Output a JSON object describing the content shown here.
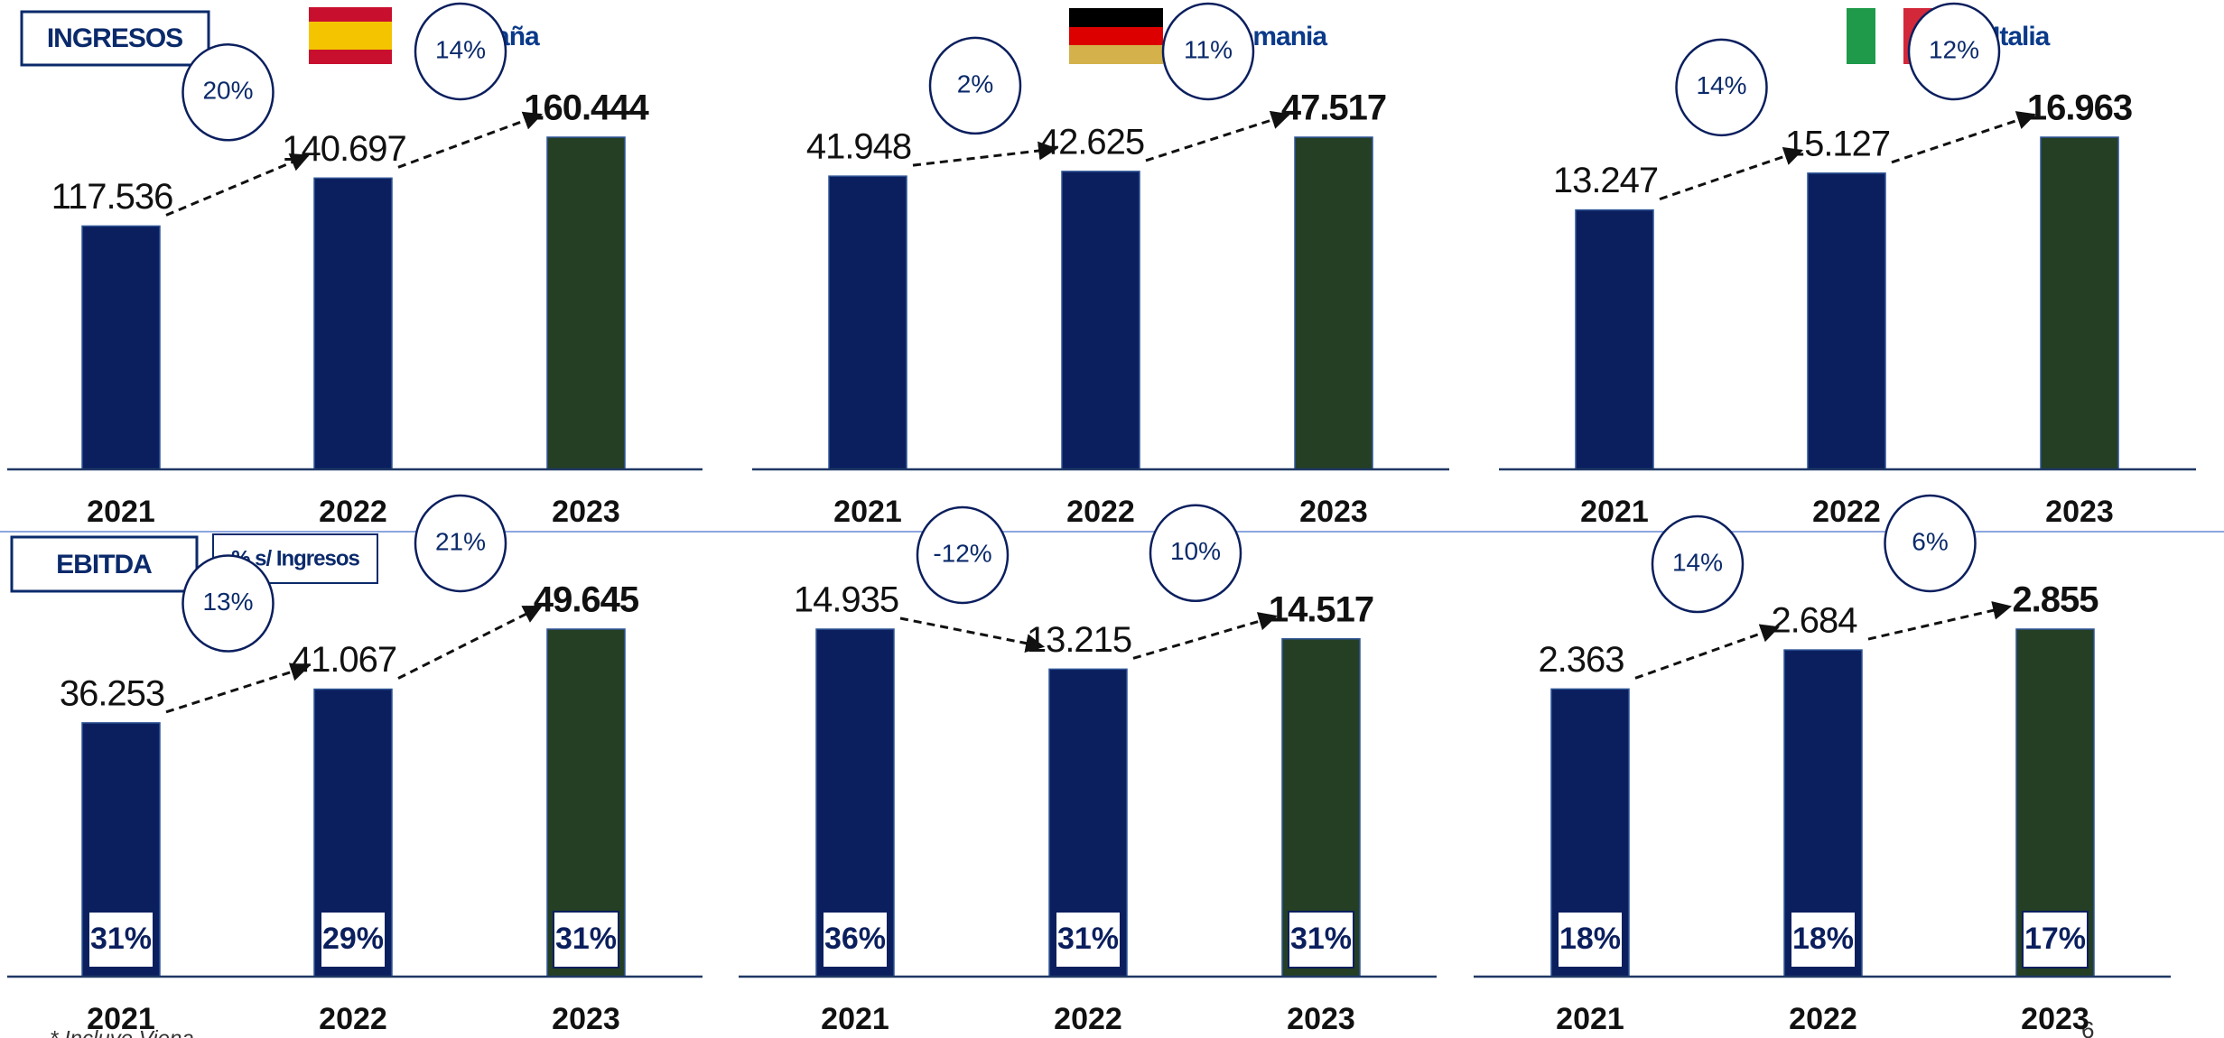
{
  "section_labels": {
    "revenue": "INGRESOS",
    "ebitda": "EBITDA",
    "margin_note": "% s/ Ingresos"
  },
  "countries": [
    {
      "name": "España"
    },
    {
      "prefix": "(*)",
      "name": "Alemania"
    },
    {
      "name": "Italia"
    }
  ],
  "footnote": "* Incluye Viena",
  "page_number": "6",
  "chart_data": [
    {
      "type": "bar",
      "categories": [
        "2021",
        "2022",
        "2023"
      ],
      "values": [
        117536,
        140697,
        160444
      ],
      "value_labels": [
        "117.536",
        "140.697",
        "160.444"
      ],
      "colors": [
        "#0b1f5e",
        "#0b1f5e",
        "#243f24"
      ],
      "growth": [
        20,
        14
      ],
      "growth_labels": [
        "20%",
        "14%"
      ]
    },
    {
      "type": "bar",
      "categories": [
        "2021",
        "2022",
        "2023"
      ],
      "values": [
        41948,
        42625,
        47517
      ],
      "value_labels": [
        "41.948",
        "42.625",
        "47.517"
      ],
      "colors": [
        "#0b1f5e",
        "#0b1f5e",
        "#243f24"
      ],
      "growth": [
        2,
        11
      ],
      "growth_labels": [
        "2%",
        "11%"
      ]
    },
    {
      "type": "bar",
      "categories": [
        "2021",
        "2022",
        "2023"
      ],
      "values": [
        13247,
        15127,
        16963
      ],
      "value_labels": [
        "13.247",
        "15.127",
        "16.963"
      ],
      "colors": [
        "#0b1f5e",
        "#0b1f5e",
        "#243f24"
      ],
      "growth": [
        14,
        12
      ],
      "growth_labels": [
        "14%",
        "12%"
      ]
    },
    {
      "type": "bar",
      "categories": [
        "2021",
        "2022",
        "2023"
      ],
      "values": [
        36253,
        41067,
        49645
      ],
      "value_labels": [
        "36.253",
        "41.067",
        "49.645"
      ],
      "colors": [
        "#0b1f5e",
        "#0b1f5e",
        "#243f24"
      ],
      "growth": [
        13,
        21
      ],
      "growth_labels": [
        "13%",
        "21%"
      ],
      "margins": [
        31,
        29,
        31
      ],
      "margin_labels": [
        "31%",
        "29%",
        "31%"
      ]
    },
    {
      "type": "bar",
      "categories": [
        "2021",
        "2022",
        "2023"
      ],
      "values": [
        14935,
        13215,
        14517
      ],
      "value_labels": [
        "14.935",
        "13.215",
        "14.517"
      ],
      "colors": [
        "#0b1f5e",
        "#0b1f5e",
        "#243f24"
      ],
      "growth": [
        -12,
        10
      ],
      "growth_labels": [
        "-12%",
        "10%"
      ],
      "margins": [
        36,
        31,
        31
      ],
      "margin_labels": [
        "36%",
        "31%",
        "31%"
      ]
    },
    {
      "type": "bar",
      "categories": [
        "2021",
        "2022",
        "2023"
      ],
      "values": [
        2363,
        2684,
        2855
      ],
      "value_labels": [
        "2.363",
        "2.684",
        "2.855"
      ],
      "colors": [
        "#0b1f5e",
        "#0b1f5e",
        "#243f24"
      ],
      "growth": [
        14,
        6
      ],
      "growth_labels": [
        "14%",
        "6%"
      ],
      "margins": [
        18,
        18,
        17
      ],
      "margin_labels": [
        "18%",
        "18%",
        "17%"
      ]
    }
  ]
}
